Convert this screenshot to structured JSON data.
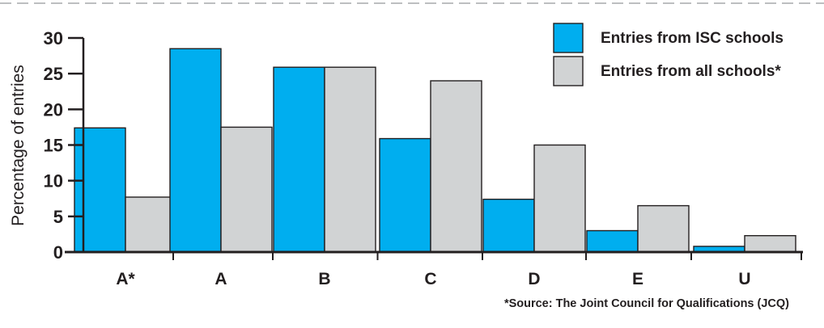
{
  "chart_data": {
    "type": "bar",
    "categories": [
      "A*",
      "A",
      "B",
      "C",
      "D",
      "E",
      "U"
    ],
    "series": [
      {
        "name": "Entries from ISC schools",
        "color": "#00aeef",
        "values": [
          17.4,
          28.5,
          25.9,
          15.9,
          7.4,
          3.0,
          0.8
        ]
      },
      {
        "name": "Entries from all schools*",
        "color": "#d1d3d4",
        "values": [
          7.7,
          17.5,
          25.9,
          24.0,
          15.0,
          6.5,
          2.3
        ]
      }
    ],
    "xlabel": "",
    "ylabel": "Percentage of entries",
    "ylim": [
      0,
      30
    ],
    "yticks": [
      0,
      5,
      10,
      15,
      20,
      25,
      30
    ],
    "grid": false,
    "legend": "top-right",
    "bar_outline_color": "#231f20",
    "source_note": "*Source: The Joint Council for Qualifications (JCQ)"
  }
}
